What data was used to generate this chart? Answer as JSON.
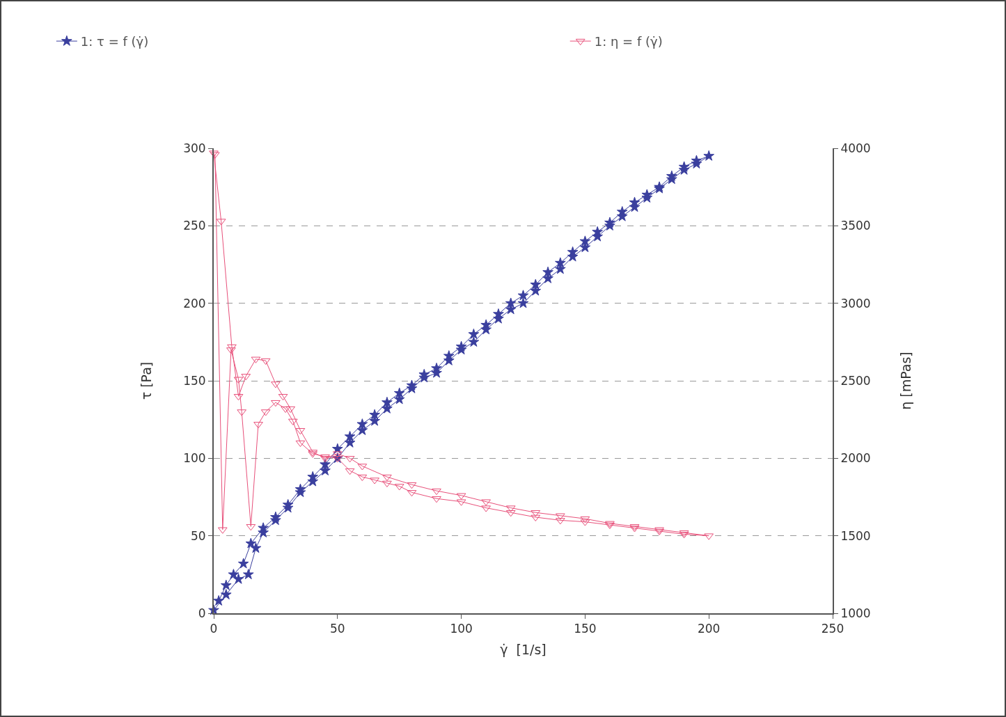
{
  "chart_data": {
    "type": "line",
    "xlabel": "γ̇  [1/s]",
    "ylabel": "τ [Pa]",
    "y2label": "η [mPas]",
    "xlim": [
      0,
      250
    ],
    "xticks": [
      0,
      50,
      100,
      150,
      200,
      250
    ],
    "ylim": [
      0,
      300
    ],
    "yticks": [
      0,
      50,
      100,
      150,
      200,
      250,
      300
    ],
    "y2lim": [
      1000,
      4000
    ],
    "y2ticks": [
      1000,
      1500,
      2000,
      2500,
      3000,
      3500,
      4000
    ],
    "grid": "y",
    "legend": "top",
    "line_style": "solid",
    "series": [
      {
        "name": "1: τ = f (γ̇)",
        "color": "#3a3f9e",
        "marker": "star",
        "x": [
          0,
          5,
          10,
          14,
          17,
          20,
          25,
          30,
          35,
          40,
          45,
          50,
          55,
          60,
          65,
          70,
          75,
          80,
          85,
          90,
          95,
          100,
          105,
          110,
          115,
          120,
          125,
          130,
          135,
          140,
          145,
          150,
          155,
          160,
          165,
          170,
          175,
          180,
          185,
          190,
          195,
          200,
          195,
          190,
          185,
          180,
          175,
          170,
          165,
          160,
          155,
          150,
          145,
          140,
          135,
          130,
          125,
          120,
          115,
          110,
          105,
          100,
          95,
          90,
          85,
          80,
          75,
          70,
          65,
          60,
          55,
          50,
          45,
          40,
          35,
          30,
          25,
          20,
          15,
          12,
          8,
          5,
          2
        ],
        "values": [
          2,
          12,
          22,
          25,
          42,
          52,
          60,
          68,
          78,
          85,
          92,
          100,
          110,
          118,
          124,
          132,
          138,
          145,
          152,
          155,
          163,
          170,
          175,
          183,
          190,
          196,
          200,
          208,
          216,
          222,
          230,
          236,
          243,
          250,
          256,
          262,
          268,
          274,
          280,
          286,
          290,
          295,
          292,
          288,
          282,
          275,
          270,
          265,
          259,
          252,
          246,
          240,
          233,
          226,
          220,
          212,
          205,
          200,
          193,
          186,
          180,
          172,
          166,
          158,
          154,
          147,
          142,
          136,
          128,
          122,
          114,
          106,
          96,
          88,
          80,
          70,
          62,
          55,
          45,
          32,
          25,
          18,
          8
        ]
      },
      {
        "name": "1: η = f (γ̇)",
        "color": "#e8507a",
        "marker": "triangle",
        "axis": "y2",
        "x": [
          0.5,
          3.6,
          7,
          10,
          11.3,
          15,
          18,
          21,
          25,
          29,
          32,
          35,
          40,
          45,
          50,
          55,
          60,
          65,
          70,
          75,
          80,
          90,
          100,
          110,
          120,
          130,
          140,
          150,
          160,
          170,
          180,
          190,
          200,
          190,
          180,
          170,
          160,
          150,
          140,
          130,
          120,
          110,
          100,
          90,
          80,
          70,
          60,
          55,
          50,
          45,
          40,
          35,
          31,
          28,
          25,
          21,
          17,
          13,
          10,
          7.3,
          3,
          0
        ],
        "values": [
          3960,
          1540,
          2700,
          2510,
          2300,
          1560,
          2220,
          2300,
          2360,
          2320,
          2240,
          2100,
          2030,
          2010,
          2000,
          1920,
          1880,
          1860,
          1840,
          1820,
          1780,
          1740,
          1720,
          1680,
          1650,
          1620,
          1600,
          1590,
          1570,
          1550,
          1530,
          1510,
          1500,
          1520,
          1540,
          1560,
          1580,
          1610,
          1630,
          1650,
          1680,
          1720,
          1760,
          1790,
          1830,
          1880,
          1950,
          2000,
          2030,
          2000,
          2040,
          2180,
          2320,
          2400,
          2480,
          2630,
          2640,
          2530,
          2400,
          2720,
          3530,
          3970
        ]
      }
    ]
  }
}
